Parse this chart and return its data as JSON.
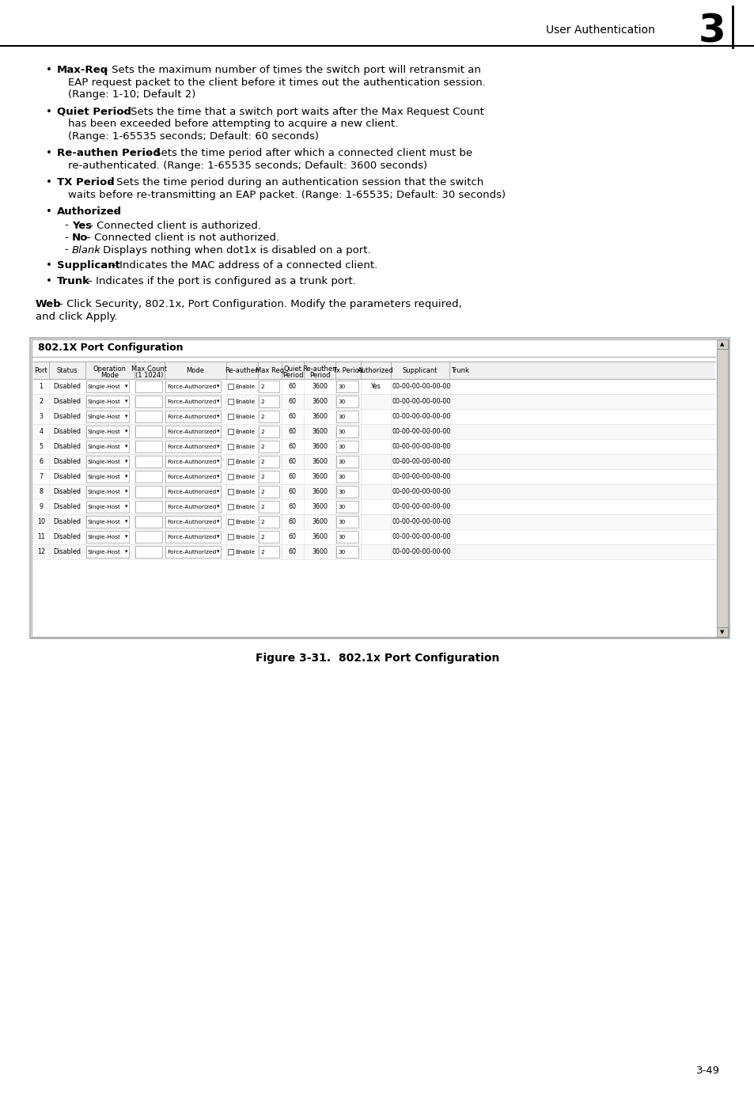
{
  "bg_color": "#ffffff",
  "header_text": "User Authentication",
  "header_number": "3",
  "page_number": "3-49",
  "table_title": "802.1X Port Configuration",
  "figure_caption": "Figure 3-31.  802.1x Port Configuration",
  "font_size_body": 9.5,
  "font_size_table_header": 6.0,
  "font_size_table_cell": 5.8,
  "font_size_caption": 10,
  "font_size_page": 9.5,
  "table_rows": [
    [
      "1",
      "Disabled",
      "Single-Host",
      "",
      "Force-Authorized",
      "Enable",
      "2",
      "60",
      "3600",
      "30",
      "Yes",
      "00-00-00-00-00-00",
      ""
    ],
    [
      "2",
      "Disabled",
      "Single-Host",
      "",
      "Force-Authorized",
      "Enable",
      "2",
      "60",
      "3600",
      "30",
      "",
      "00-00-00-00-00-00",
      ""
    ],
    [
      "3",
      "Disabled",
      "Single-Host",
      "",
      "Force-Authorized",
      "Enable",
      "2",
      "60",
      "3600",
      "30",
      "",
      "00-00-00-00-00-00",
      ""
    ],
    [
      "4",
      "Disabled",
      "Single-Host",
      "",
      "Force-Authorized",
      "Enable",
      "2",
      "60",
      "3600",
      "30",
      "",
      "00-00-00-00-00-00",
      ""
    ],
    [
      "5",
      "Disabled",
      "Single-Host",
      "",
      "Force-Authorized",
      "Enable",
      "2",
      "60",
      "3600",
      "30",
      "",
      "00-00-00-00-00-00",
      ""
    ],
    [
      "6",
      "Disabled",
      "Single-Host",
      "",
      "Force-Authorized",
      "Enable",
      "2",
      "60",
      "3600",
      "30",
      "",
      "00-00-00-00-00-00",
      ""
    ],
    [
      "7",
      "Disabled",
      "Single-Host",
      "",
      "Force-Authorized",
      "Enable",
      "2",
      "60",
      "3600",
      "30",
      "",
      "00-00-00-00-00-00",
      ""
    ],
    [
      "8",
      "Disabled",
      "Single-Host",
      "",
      "Force-Authorized",
      "Enable",
      "2",
      "60",
      "3600",
      "30",
      "",
      "00-00-00-00-00-00",
      ""
    ],
    [
      "9",
      "Disabled",
      "Single-Host",
      "",
      "Force-Authorized",
      "Enable",
      "2",
      "60",
      "3600",
      "30",
      "",
      "00-00-00-00-00-00",
      ""
    ],
    [
      "10",
      "Disabled",
      "Single-Host",
      "",
      "Force-Authorized",
      "Enable",
      "2",
      "60",
      "3600",
      "30",
      "",
      "00-00-00-00-00-00",
      ""
    ],
    [
      "11",
      "Disabled",
      "Single-Host",
      "",
      "Force-Authorized",
      "Enable",
      "2",
      "60",
      "3600",
      "30",
      "",
      "00-00-00-00-00-00",
      ""
    ],
    [
      "12",
      "Disabled",
      "Single-Host",
      "",
      "Force-Authorized",
      "Enable",
      "2",
      "60",
      "3600",
      "30",
      "",
      "00-00-00-00-00-00",
      ""
    ]
  ]
}
